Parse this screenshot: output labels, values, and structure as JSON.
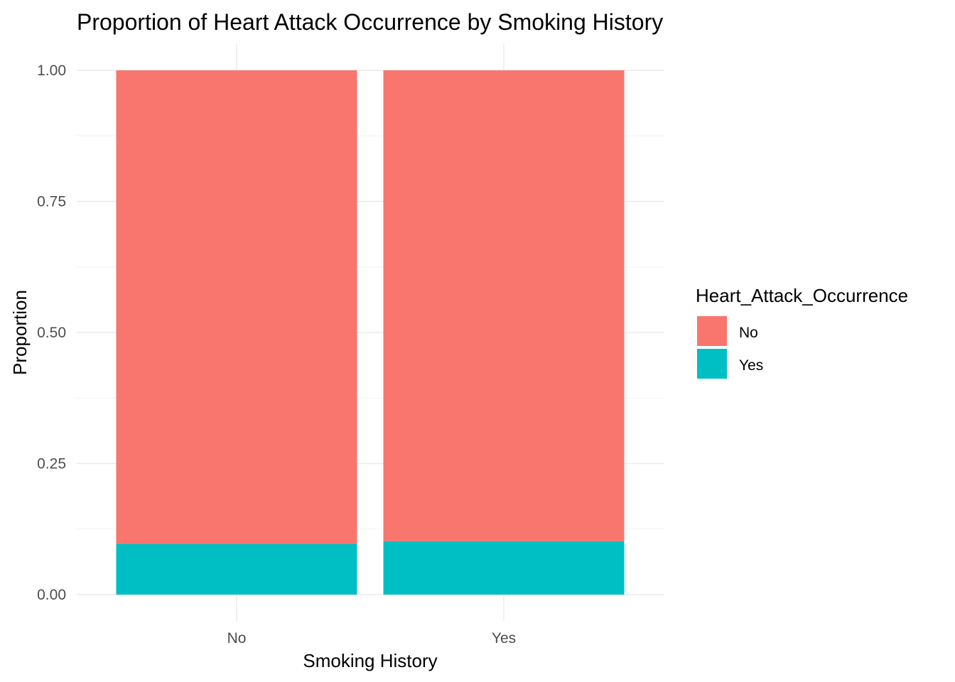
{
  "chart_data": {
    "type": "bar",
    "stacked": true,
    "title": "Proportion of Heart Attack Occurrence by Smoking History",
    "xlabel": "Smoking History",
    "ylabel": "Proportion",
    "categories": [
      "No",
      "Yes"
    ],
    "ylim": [
      0,
      1
    ],
    "yticks": [
      "0.00",
      "0.25",
      "0.50",
      "0.75",
      "1.00"
    ],
    "legend": {
      "title": "Heart_Attack_Occurrence",
      "position": "right"
    },
    "series": [
      {
        "name": "Yes",
        "color": "#00BFC4",
        "values": [
          0.097,
          0.102
        ]
      },
      {
        "name": "No",
        "color": "#F8766D",
        "values": [
          0.903,
          0.898
        ]
      }
    ],
    "legend_order": [
      "No",
      "Yes"
    ],
    "grid": true
  }
}
